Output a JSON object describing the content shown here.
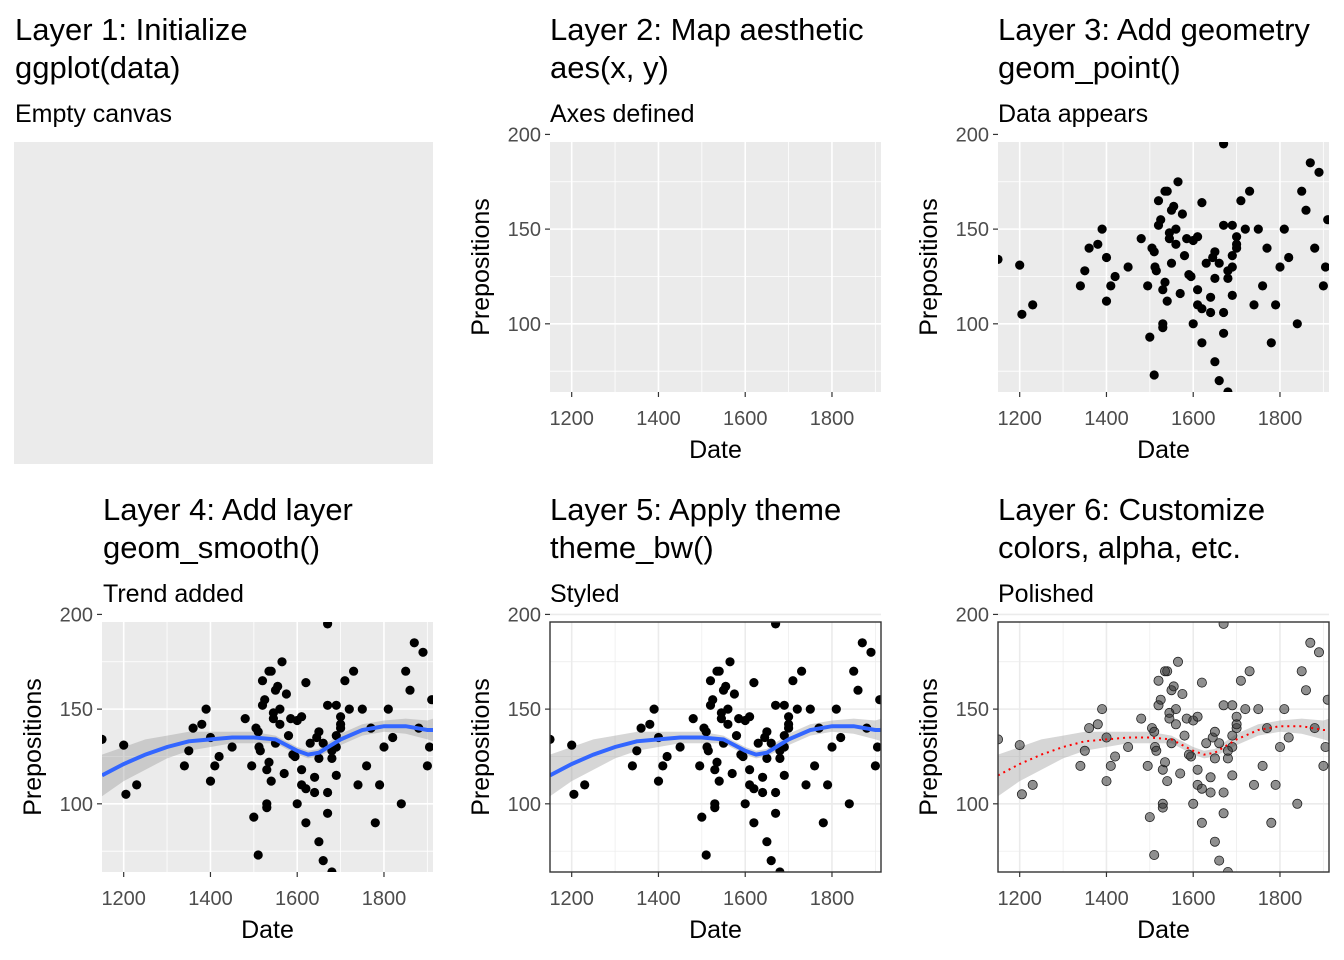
{
  "chart_data": [
    {
      "type": "blank",
      "title_line1": "Layer 1: Initialize",
      "title_line2": "ggplot(data)",
      "subtitle": "Empty canvas",
      "layers": [],
      "theme": "grey"
    },
    {
      "type": "scatter",
      "title_line1": "Layer 2: Map aesthetic",
      "title_line2": "aes(x, y)",
      "subtitle": "Axes defined",
      "xlabel": "Date",
      "ylabel": "Prepositions",
      "xlim": [
        1150,
        1913
      ],
      "ylim": [
        64,
        196
      ],
      "xticks": [
        1200,
        1400,
        1600,
        1800
      ],
      "yticks": [
        100,
        150,
        200
      ],
      "layers": [],
      "theme": "grey"
    },
    {
      "type": "scatter",
      "title_line1": "Layer 3: Add geometry",
      "title_line2": "geom_point()",
      "subtitle": "Data appears",
      "xlabel": "Date",
      "ylabel": "Prepositions",
      "xlim": [
        1150,
        1913
      ],
      "ylim": [
        64,
        196
      ],
      "xticks": [
        1200,
        1400,
        1600,
        1800
      ],
      "yticks": [
        100,
        150,
        200
      ],
      "layers": [
        "points"
      ],
      "theme": "grey"
    },
    {
      "type": "scatter",
      "title_line1": "Layer 4: Add layer",
      "title_line2": "geom_smooth()",
      "subtitle": "Trend added",
      "xlabel": "Date",
      "ylabel": "Prepositions",
      "xlim": [
        1150,
        1913
      ],
      "ylim": [
        64,
        196
      ],
      "xticks": [
        1200,
        1400,
        1600,
        1800
      ],
      "yticks": [
        100,
        150,
        200
      ],
      "layers": [
        "points",
        "smooth"
      ],
      "theme": "grey"
    },
    {
      "type": "scatter",
      "title_line1": "Layer 5: Apply theme",
      "title_line2": "theme_bw()",
      "subtitle": "Styled",
      "xlabel": "Date",
      "ylabel": "Prepositions",
      "xlim": [
        1150,
        1913
      ],
      "ylim": [
        64,
        196
      ],
      "xticks": [
        1200,
        1400,
        1600,
        1800
      ],
      "yticks": [
        100,
        150,
        200
      ],
      "layers": [
        "points",
        "smooth"
      ],
      "theme": "bw"
    },
    {
      "type": "scatter",
      "title_line1": "Layer 6: Customize",
      "title_line2": "colors, alpha, etc.",
      "subtitle": "Polished",
      "xlabel": "Date",
      "ylabel": "Prepositions",
      "xlim": [
        1150,
        1913
      ],
      "ylim": [
        64,
        196
      ],
      "xticks": [
        1200,
        1400,
        1600,
        1800
      ],
      "yticks": [
        100,
        150,
        200
      ],
      "layers": [
        "points",
        "smooth"
      ],
      "theme": "bw-polished"
    }
  ],
  "points": {
    "x": [
      1150,
      1200,
      1205,
      1230,
      1340,
      1350,
      1360,
      1380,
      1390,
      1400,
      1400,
      1410,
      1420,
      1450,
      1480,
      1500,
      1510,
      1520,
      1525,
      1530,
      1540,
      1550,
      1560,
      1600,
      1610,
      1620,
      1650,
      1660,
      1670,
      1680,
      1690,
      1700,
      1720,
      1740,
      1760,
      1780,
      1800,
      1820,
      1850,
      1870,
      1890,
      1900,
      1905,
      1910,
      1880,
      1860,
      1840,
      1810,
      1790,
      1770,
      1750,
      1730,
      1710,
      1690,
      1670,
      1645,
      1595,
      1585,
      1575,
      1565,
      1555,
      1545,
      1535,
      1512,
      1505,
      1495,
      1515,
      1520,
      1510,
      1530,
      1540,
      1530,
      1545,
      1550,
      1535,
      1560,
      1570,
      1580,
      1590,
      1600,
      1610,
      1620,
      1630,
      1640,
      1650,
      1670,
      1680,
      1690,
      1700,
      1610,
      1620,
      1640,
      1650,
      1660,
      1670,
      1680,
      1690,
      1700
    ],
    "y": [
      134,
      131,
      105,
      110,
      120,
      128,
      140,
      142,
      150,
      135,
      112,
      120,
      125,
      130,
      145,
      93,
      73,
      165,
      155,
      100,
      170,
      160,
      150,
      100,
      110,
      90,
      80,
      70,
      95,
      64,
      130,
      140,
      150,
      110,
      120,
      90,
      130,
      135,
      170,
      185,
      180,
      120,
      130,
      155,
      140,
      160,
      100,
      150,
      110,
      140,
      150,
      170,
      165,
      115,
      195,
      135,
      125,
      145,
      158,
      175,
      162,
      148,
      170,
      130,
      140,
      120,
      128,
      152,
      138,
      118,
      112,
      98,
      145,
      132,
      122,
      142,
      116,
      136,
      126,
      144,
      118,
      108,
      132,
      114,
      138,
      106,
      124,
      152,
      146,
      146,
      164,
      106,
      124,
      132,
      152,
      128,
      136,
      142
    ]
  },
  "smooth": {
    "x": [
      1150,
      1200,
      1250,
      1300,
      1350,
      1400,
      1450,
      1500,
      1550,
      1600,
      1625,
      1650,
      1700,
      1750,
      1800,
      1850,
      1900,
      1913
    ],
    "y": [
      115,
      121,
      126,
      130,
      133,
      134,
      135,
      135,
      134,
      128,
      126,
      127,
      134,
      139,
      141,
      141,
      139,
      139
    ],
    "se": [
      11,
      9,
      8,
      6,
      5,
      4,
      3,
      3,
      2,
      2,
      2,
      2,
      3,
      3,
      3,
      4,
      5,
      6
    ]
  },
  "colors": {
    "panel_grey": "#ebebeb",
    "grid_white": "#ffffff",
    "grid_light": "#ebebeb",
    "point_black": "#000000",
    "point_polished": "#333333",
    "smooth_blue": "#3366ff",
    "smooth_red": "#ff0000",
    "ribbon": "#999999",
    "tick_text": "#4d4d4d"
  }
}
